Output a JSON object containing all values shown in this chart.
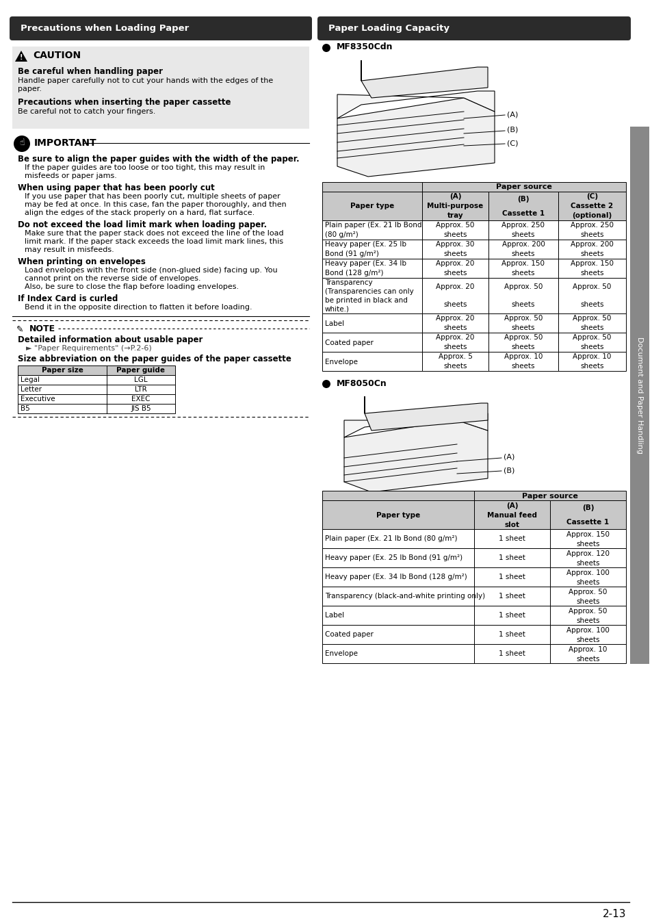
{
  "page_bg": "#ffffff",
  "header_bg": "#2b2b2b",
  "header_text_color": "#ffffff",
  "left_header": "Precautions when Loading Paper",
  "right_header": "Paper Loading Capacity",
  "caution_bg": "#e8e8e8",
  "caution_title": "CAUTION",
  "caution_body1_heading": "Be careful when handling paper",
  "caution_body1_lines": [
    "Handle paper carefully not to cut your hands with the edges of the",
    "paper."
  ],
  "caution_body2_heading": "Precautions when inserting the paper cassette",
  "caution_body2_lines": [
    "Be careful not to catch your fingers."
  ],
  "important_title": "IMPORTANT",
  "imp_item1_heading": "Be sure to align the paper guides with the width of the paper.",
  "imp_item1_lines": [
    "If the paper guides are too loose or too tight, this may result in",
    "misfeeds or paper jams."
  ],
  "imp_item2_heading": "When using paper that has been poorly cut",
  "imp_item2_lines": [
    "If you use paper that has been poorly cut, multiple sheets of paper",
    "may be fed at once. In this case, fan the paper thoroughly, and then",
    "align the edges of the stack properly on a hard, flat surface."
  ],
  "imp_item3_heading": "Do not exceed the load limit mark when loading paper.",
  "imp_item3_lines": [
    "Make sure that the paper stack does not exceed the line of the load",
    "limit mark. If the paper stack exceeds the load limit mark lines, this",
    "may result in misfeeds."
  ],
  "imp_item4_heading": "When printing on envelopes",
  "imp_item4_lines": [
    "Load envelopes with the front side (non-glued side) facing up. You",
    "cannot print on the reverse side of envelopes.",
    "Also, be sure to close the flap before loading envelopes."
  ],
  "imp_item5_heading": "If Index Card is curled",
  "imp_item5_lines": [
    "Bend it in the opposite direction to flatten it before loading."
  ],
  "note_title": "NOTE",
  "note_item1_heading": "Detailed information about usable paper",
  "note_item1_body": "► \"Paper Requirements\" (→P.2-6)",
  "note_item2_heading": "Size abbreviation on the paper guides of the paper cassette",
  "note_table_headers": [
    "Paper size",
    "Paper guide"
  ],
  "note_table_rows": [
    [
      "Legal",
      "LGL"
    ],
    [
      "Letter",
      "LTR"
    ],
    [
      "Executive",
      "EXEC"
    ],
    [
      "B5",
      "JIS B5"
    ]
  ],
  "mf8350_label": "MF8350Cdn",
  "mf8350_table_title": "Paper source",
  "mf8350_col_headers": [
    "Paper type",
    "(A)\nMulti-purpose\ntray",
    "(B)\nCassette 1",
    "(C)\nCassette 2\n(optional)"
  ],
  "mf8350_rows": [
    [
      "Plain paper (Ex. 21 lb Bond\n(80 g/m²)",
      "Approx. 50\nsheets",
      "Approx. 250\nsheets",
      "Approx. 250\nsheets"
    ],
    [
      "Heavy paper (Ex. 25 lb\nBond (91 g/m²)",
      "Approx. 30\nsheets",
      "Approx. 200\nsheets",
      "Approx. 200\nsheets"
    ],
    [
      "Heavy paper (Ex. 34 lb\nBond (128 g/m²)",
      "Approx. 20\nsheets",
      "Approx. 150\nsheets",
      "Approx. 150\nsheets"
    ],
    [
      "Transparency\n(Transparencies can only\nbe printed in black and\nwhite.)",
      "Approx. 20\nsheets",
      "Approx. 50\nsheets",
      "Approx. 50\nsheets"
    ],
    [
      "Label",
      "Approx. 20\nsheets",
      "Approx. 50\nsheets",
      "Approx. 50\nsheets"
    ],
    [
      "Coated paper",
      "Approx. 20\nsheets",
      "Approx. 50\nsheets",
      "Approx. 50\nsheets"
    ],
    [
      "Envelope",
      "Approx. 5\nsheets",
      "Approx. 10\nsheets",
      "Approx. 10\nsheets"
    ]
  ],
  "mf8050_label": "MF8050Cn",
  "mf8050_col_headers": [
    "Paper type",
    "(A)\nManual feed\nslot",
    "(B)\nCassette 1"
  ],
  "mf8050_rows": [
    [
      "Plain paper (Ex. 21 lb Bond (80 g/m²)",
      "1 sheet",
      "Approx. 150\nsheets"
    ],
    [
      "Heavy paper (Ex. 25 lb Bond (91 g/m²)",
      "1 sheet",
      "Approx. 120\nsheets"
    ],
    [
      "Heavy paper (Ex. 34 lb Bond (128 g/m²)",
      "1 sheet",
      "Approx. 100\nsheets"
    ],
    [
      "Transparency (black-and-white printing only)",
      "1 sheet",
      "Approx. 50\nsheets"
    ],
    [
      "Label",
      "1 sheet",
      "Approx. 50\nsheets"
    ],
    [
      "Coated paper",
      "1 sheet",
      "Approx. 100\nsheets"
    ],
    [
      "Envelope",
      "1 sheet",
      "Approx. 10\nsheets"
    ]
  ],
  "sidebar_text": "Document and Paper Handling",
  "sidebar_bg": "#888888",
  "page_number": "2-13",
  "table_header_bg": "#c8c8c8",
  "table_border": "#000000"
}
